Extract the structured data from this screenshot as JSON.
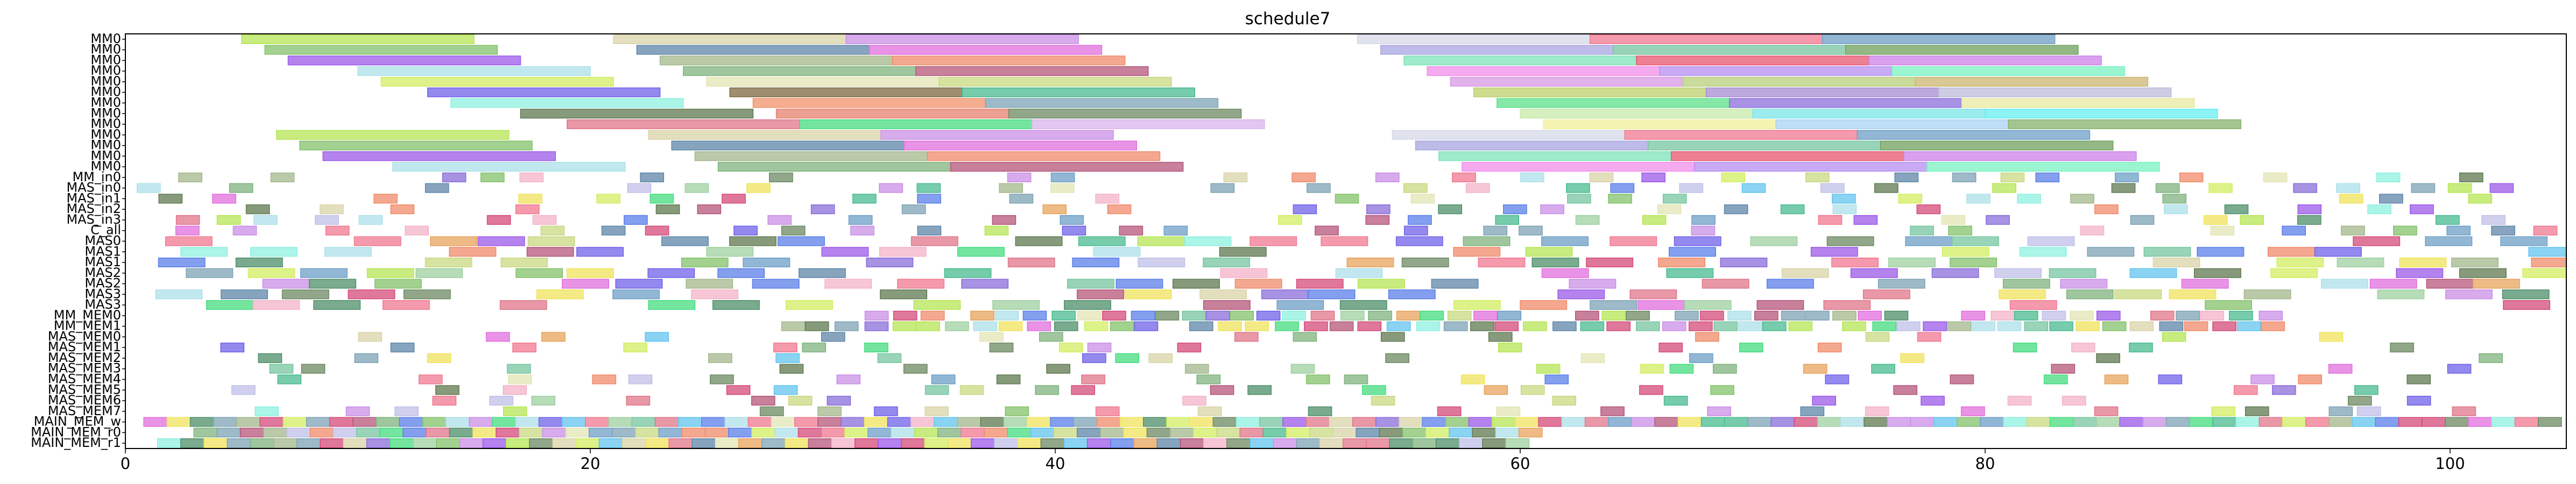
{
  "chart_data": {
    "type": "gantt",
    "title": "schedule7",
    "xlabel": "",
    "ylabel": "",
    "xlim": [
      0,
      105
    ],
    "xticks": [
      0,
      20,
      40,
      60,
      80,
      100
    ],
    "grid": false,
    "legend": "none",
    "rows": [
      "MM0",
      "MM0",
      "MM0",
      "MM0",
      "MM0",
      "MM0",
      "MM0",
      "MM0",
      "MM0",
      "MM0",
      "MM0",
      "MM0",
      "MM0",
      "MM_in0",
      "MAS_in0",
      "MAS_in1",
      "MAS_in2",
      "MAS_in3",
      "C_all",
      "MAS0",
      "MAS1",
      "MAS1",
      "MAS2",
      "MAS2",
      "MAS3",
      "MAS3",
      "MM_MEM0",
      "MM_MEM1",
      "MAS_MEM0",
      "MAS_MEM1",
      "MAS_MEM2",
      "MAS_MEM3",
      "MAS_MEM4",
      "MAS_MEM5",
      "MAS_MEM6",
      "MAS_MEM7",
      "MAIN_MEM_w",
      "MAIN_MEM_r0",
      "MAIN_MEM_r1"
    ],
    "tasks": {
      "MM0": [
        [
          [
            5,
            15,
            "#b5e655"
          ],
          [
            21,
            31,
            "#d9d4a8"
          ],
          [
            31,
            41,
            "#c98fe6"
          ],
          [
            53,
            63,
            "#d5d8e8"
          ],
          [
            63,
            73,
            "#f07890"
          ],
          [
            73,
            83,
            "#6e9fc7"
          ]
        ],
        [
          [
            6,
            16,
            "#84c26b"
          ],
          [
            22,
            32,
            "#5f86a8"
          ],
          [
            32,
            42,
            "#e16fdd"
          ],
          [
            54,
            64,
            "#a7a6e0"
          ],
          [
            64,
            74,
            "#77c6a0"
          ],
          [
            74,
            84,
            "#6fa05c"
          ]
        ],
        [
          [
            7,
            17,
            "#9b59e8"
          ],
          [
            23,
            33,
            "#a3b88c"
          ],
          [
            33,
            43,
            "#f08b6a"
          ],
          [
            55,
            65,
            "#7de3b8"
          ],
          [
            65,
            75,
            "#e7566f"
          ],
          [
            75,
            85,
            "#cc80e8"
          ]
        ],
        [
          [
            10,
            20,
            "#aee0ea"
          ],
          [
            24,
            34,
            "#7fb37d"
          ],
          [
            34,
            44,
            "#b5557a"
          ],
          [
            56,
            66,
            "#f28de9"
          ],
          [
            66,
            76,
            "#b58ff0"
          ],
          [
            76,
            86,
            "#7af2c1"
          ]
        ],
        [
          [
            11,
            21,
            "#d2ee62"
          ],
          [
            25,
            35,
            "#e3e6b5"
          ],
          [
            35,
            45,
            "#c8d982"
          ],
          [
            57,
            67,
            "#d898e3"
          ],
          [
            67,
            77,
            "#b8cf7a"
          ],
          [
            77,
            87,
            "#ccb66f"
          ]
        ],
        [
          [
            13,
            23,
            "#7062e8"
          ],
          [
            26,
            36,
            "#7c6a3f"
          ],
          [
            36,
            46,
            "#48bb8f"
          ],
          [
            58,
            68,
            "#bcd06a"
          ],
          [
            68,
            78,
            "#a88cd2"
          ],
          [
            78,
            88,
            "#bbbbd9"
          ]
        ],
        [
          [
            14,
            24,
            "#8ef0e0"
          ],
          [
            27,
            37,
            "#f0916a"
          ],
          [
            37,
            47,
            "#7ea3b5"
          ],
          [
            59,
            69,
            "#5de08a"
          ],
          [
            69,
            79,
            "#8a6dda"
          ],
          [
            79,
            89,
            "#e8e8a0"
          ]
        ],
        [
          [
            17,
            27,
            "#5f7a50"
          ],
          [
            28,
            38,
            "#e6806e"
          ],
          [
            38,
            48,
            "#6d8a62"
          ],
          [
            60,
            70,
            "#c7eaa8"
          ],
          [
            70,
            80,
            "#7be6e8"
          ],
          [
            80,
            90,
            "#65eef0"
          ]
        ],
        [
          [
            19,
            29,
            "#e0768a"
          ],
          [
            29,
            39,
            "#45dc7f"
          ],
          [
            39,
            49,
            "#d8b5ec"
          ],
          [
            61,
            71,
            "#f1f098"
          ],
          [
            71,
            81,
            "#aad2f3"
          ],
          [
            81,
            91,
            "#86b26a"
          ]
        ]
      ]
    }
  }
}
